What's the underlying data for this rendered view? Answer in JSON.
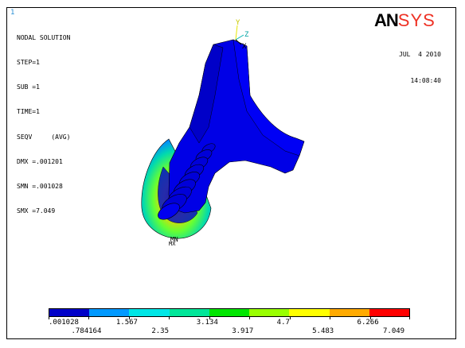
{
  "window": {
    "number": "1"
  },
  "info": {
    "lines": [
      "NODAL SOLUTION",
      "STEP=1",
      "SUB =1",
      "TIME=1",
      "SEQV     (AVG)",
      "DMX =.001201",
      "SMN =.001028",
      "SMX =7.049"
    ]
  },
  "logo": {
    "an": "AN",
    "sys": "SYS"
  },
  "datetime": {
    "date": "JUL  4 2010",
    "time": "14:08:40"
  },
  "triad": {
    "y": "Y",
    "z": "Z",
    "x": "X"
  },
  "node_markers": {
    "mn": "MN",
    "mx": "MX"
  },
  "legend": {
    "colors": [
      "#0000c8",
      "#0099ff",
      "#00e6e6",
      "#00e699",
      "#00e600",
      "#99ff00",
      "#ffff00",
      "#ffaa00",
      "#ff0000"
    ],
    "labels_top": [
      ".001028",
      "1.567",
      "3.134",
      "4.7",
      "6.266"
    ],
    "labels_bottom": [
      ".784164",
      "2.35",
      "3.917",
      "5.483",
      "7.049"
    ]
  }
}
